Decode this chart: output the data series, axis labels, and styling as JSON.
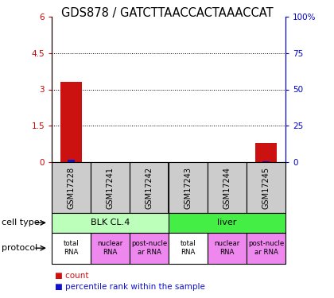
{
  "title": "GDS878 / GATCTTAACCACTAAACCAT",
  "samples": [
    "GSM17228",
    "GSM17241",
    "GSM17242",
    "GSM17243",
    "GSM17244",
    "GSM17245"
  ],
  "count_values": [
    3.3,
    0,
    0,
    0,
    0,
    0.8
  ],
  "percentile_values": [
    2.0,
    0,
    0,
    0,
    0,
    0.5
  ],
  "ylim_left": [
    0,
    6
  ],
  "ylim_right": [
    0,
    100
  ],
  "yticks_left": [
    0,
    1.5,
    3.0,
    4.5,
    6
  ],
  "yticks_right": [
    0,
    25,
    50,
    75,
    100
  ],
  "ytick_labels_left": [
    "0",
    "1.5",
    "3",
    "4.5",
    "6"
  ],
  "ytick_labels_right": [
    "0",
    "25",
    "50",
    "75",
    "100%"
  ],
  "cell_type_groups": [
    {
      "label": "BLK CL.4",
      "start": 0,
      "end": 3,
      "color": "#bbffbb"
    },
    {
      "label": "liver",
      "start": 3,
      "end": 6,
      "color": "#44ee44"
    }
  ],
  "protocol_groups": [
    {
      "label": "total\nRNA",
      "idx": 0,
      "color": "#ffffff"
    },
    {
      "label": "nuclear\nRNA",
      "idx": 1,
      "color": "#ee88ee"
    },
    {
      "label": "post-nucle\nar RNA",
      "idx": 2,
      "color": "#ee88ee"
    },
    {
      "label": "total\nRNA",
      "idx": 3,
      "color": "#ffffff"
    },
    {
      "label": "nuclear\nRNA",
      "idx": 4,
      "color": "#ee88ee"
    },
    {
      "label": "post-nucle\nar RNA",
      "idx": 5,
      "color": "#ee88ee"
    }
  ],
  "count_color": "#cc1111",
  "percentile_color": "#1111cc",
  "sample_bg_color": "#cccccc",
  "left_axis_color": "#cc0000",
  "right_axis_color": "#0000cc",
  "title_fontsize": 10.5,
  "tick_fontsize": 7.5,
  "label_fontsize": 8,
  "legend_fontsize": 7.5,
  "sample_label_fontsize": 7
}
